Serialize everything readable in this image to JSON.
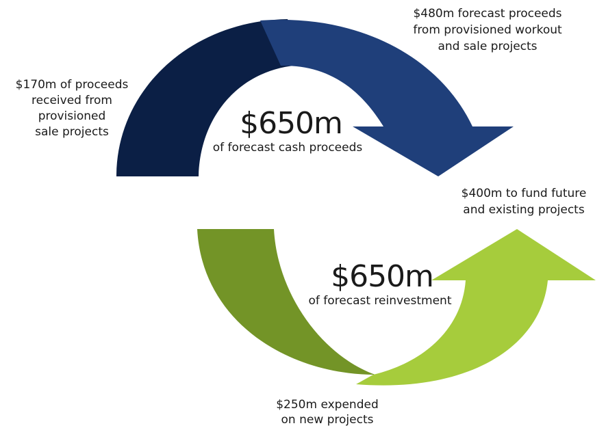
{
  "labels": [
    {
      "lines": [
        "$170m  of proceeds",
        "received from",
        "provisioned",
        "sale projects"
      ]
    },
    {
      "lines": [
        "$480m forecast proceeds",
        "from provisioned  workout",
        "and sale projects"
      ]
    },
    {
      "lines": [
        "$400m to fund future",
        "and existing projects"
      ]
    },
    {
      "lines": [
        "$250m expended",
        "on new projects"
      ]
    }
  ],
  "centers": [
    {
      "amount": "$650m",
      "caption": "of forecast cash proceeds"
    },
    {
      "amount": "$650m",
      "caption": "of forecast reinvestment"
    }
  ]
}
